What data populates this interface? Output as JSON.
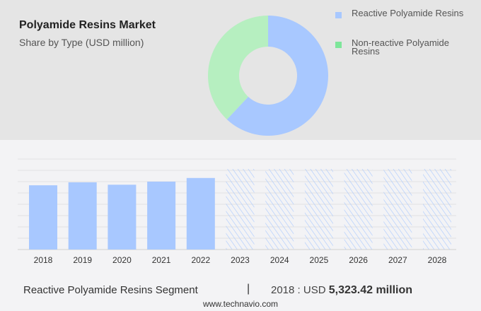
{
  "header": {
    "title": "Polyamide Resins Market",
    "subtitle": "Share by Type (USD million)"
  },
  "chart_data": [
    {
      "type": "pie",
      "style": "donut",
      "labels": [
        "Reactive Polyamide Resins",
        "Non-reactive Polyamide Resins"
      ],
      "values": [
        62,
        38
      ],
      "unit": "percent share (estimated)",
      "colors": [
        "#a8c8ff",
        "#b6efc0"
      ],
      "legend_colors": [
        "#a8c8ff",
        "#7ee69a"
      ],
      "legend_placement": "right"
    },
    {
      "type": "bar",
      "categories": [
        "2018",
        "2019",
        "2020",
        "2021",
        "2022",
        "2023",
        "2024",
        "2025",
        "2026",
        "2027",
        "2028"
      ],
      "values": [
        5323.42,
        5570,
        5370,
        5630,
        5930,
        null,
        null,
        null,
        null,
        null,
        null
      ],
      "forecast_categories": [
        "2023",
        "2024",
        "2025",
        "2026",
        "2027",
        "2028"
      ],
      "forecast_style": "hatched",
      "bar_color": "#a8c8ff",
      "grid": true,
      "ylim": [
        0,
        7500
      ]
    }
  ],
  "footer": {
    "segment": "Reactive Polyamide Resins Segment",
    "separator": "|",
    "value_prefix": "2018 : USD",
    "value": "5,323.42 million",
    "website": "www.technavio.com"
  }
}
